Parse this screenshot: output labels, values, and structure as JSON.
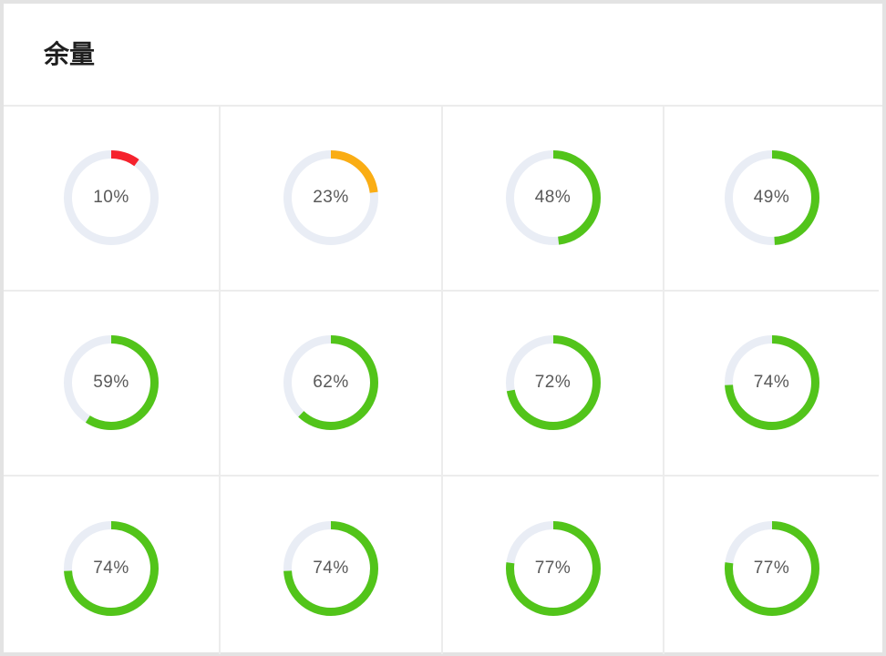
{
  "card": {
    "title": "余量"
  },
  "colors": {
    "track": "#e9edf5",
    "low": "#f5222d",
    "medium": "#faad14",
    "high": "#52c41a"
  },
  "items": [
    {
      "percent": 10,
      "label": "10%",
      "color": "#f5222d"
    },
    {
      "percent": 23,
      "label": "23%",
      "color": "#faad14"
    },
    {
      "percent": 48,
      "label": "48%",
      "color": "#52c41a"
    },
    {
      "percent": 49,
      "label": "49%",
      "color": "#52c41a"
    },
    {
      "percent": 59,
      "label": "59%",
      "color": "#52c41a"
    },
    {
      "percent": 62,
      "label": "62%",
      "color": "#52c41a"
    },
    {
      "percent": 72,
      "label": "72%",
      "color": "#52c41a"
    },
    {
      "percent": 74,
      "label": "74%",
      "color": "#52c41a"
    },
    {
      "percent": 74,
      "label": "74%",
      "color": "#52c41a"
    },
    {
      "percent": 74,
      "label": "74%",
      "color": "#52c41a"
    },
    {
      "percent": 77,
      "label": "77%",
      "color": "#52c41a"
    },
    {
      "percent": 77,
      "label": "77%",
      "color": "#52c41a"
    }
  ]
}
